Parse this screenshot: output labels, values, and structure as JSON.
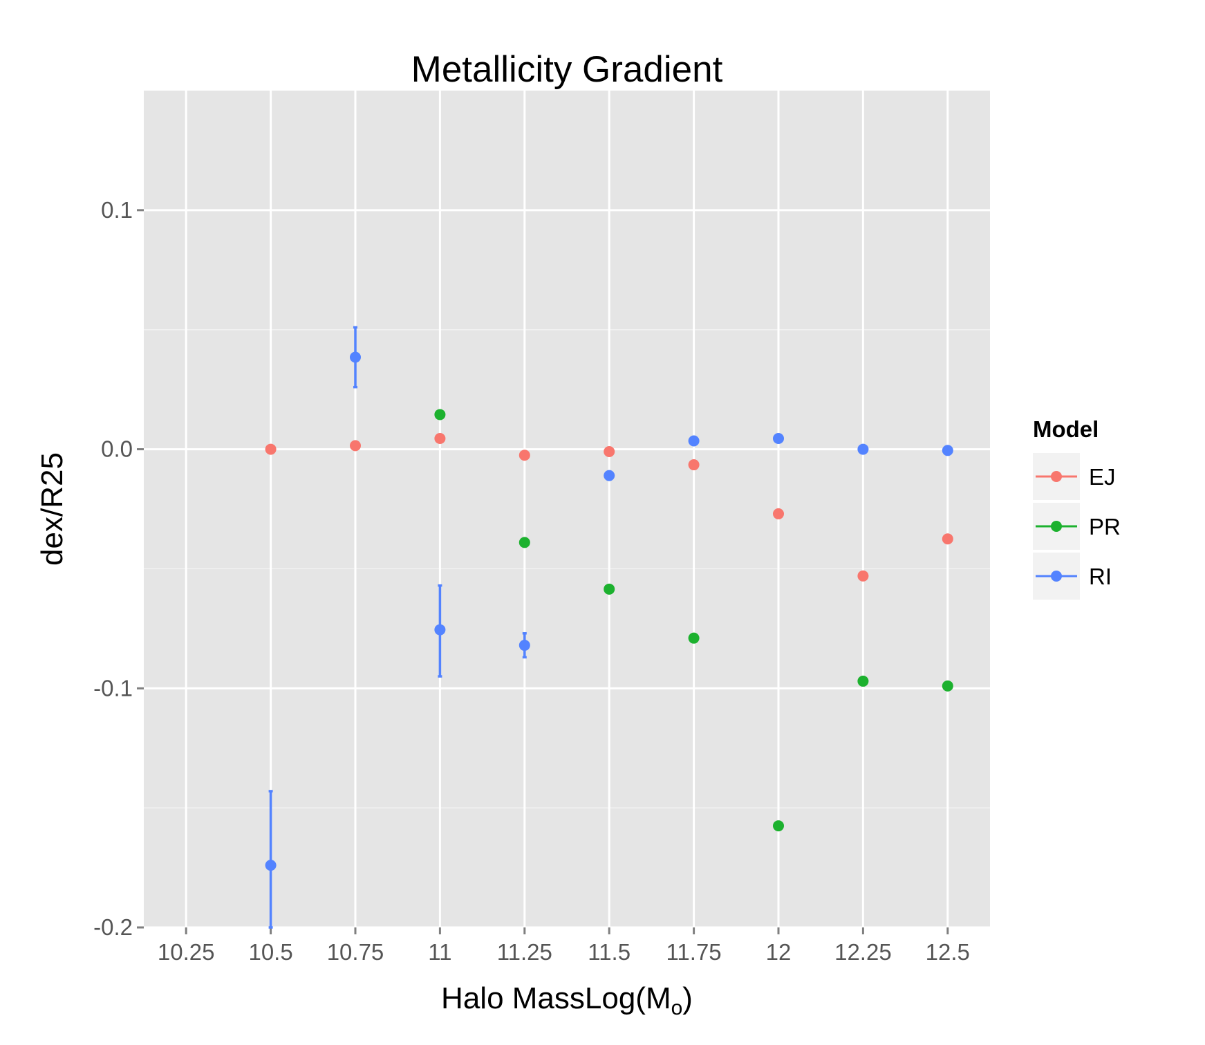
{
  "chart_data": {
    "type": "scatter",
    "title": "Metallicity Gradient",
    "xlabel": "Halo MassLog(M",
    "xlabel_sub": "o",
    "xlabel_close": ")",
    "ylabel": "dex/R25",
    "xlim": [
      10.125,
      12.625
    ],
    "ylim": [
      -0.2,
      0.15
    ],
    "x_ticks": [
      10.25,
      10.5,
      10.75,
      11,
      11.25,
      11.5,
      11.75,
      12,
      12.25,
      12.5
    ],
    "x_tick_labels": [
      "10.25",
      "10.5",
      "10.75",
      "11",
      "11.25",
      "11.5",
      "11.75",
      "12",
      "12.25",
      "12.5"
    ],
    "y_ticks": [
      -0.2,
      -0.1,
      0.0,
      0.1
    ],
    "y_tick_labels": [
      "-0.2",
      "-0.1",
      "0.0",
      "0.1"
    ],
    "grid": true,
    "legend": {
      "title": "Model",
      "position": "right"
    },
    "series": [
      {
        "name": "EJ",
        "color": "#F8766D",
        "points": [
          {
            "x": 10.5,
            "y": 0.0
          },
          {
            "x": 10.75,
            "y": 0.0015
          },
          {
            "x": 11.0,
            "y": 0.0045
          },
          {
            "x": 11.25,
            "y": -0.0025
          },
          {
            "x": 11.5,
            "y": -0.001
          },
          {
            "x": 11.75,
            "y": -0.0065
          },
          {
            "x": 12.0,
            "y": -0.027
          },
          {
            "x": 12.25,
            "y": -0.053
          },
          {
            "x": 12.5,
            "y": -0.0375
          }
        ]
      },
      {
        "name": "PR",
        "color": "#1CB12E",
        "points": [
          {
            "x": 11.0,
            "y": 0.0145
          },
          {
            "x": 11.25,
            "y": -0.039
          },
          {
            "x": 11.5,
            "y": -0.0585
          },
          {
            "x": 11.75,
            "y": -0.079
          },
          {
            "x": 12.0,
            "y": -0.1575
          },
          {
            "x": 12.25,
            "y": -0.097
          },
          {
            "x": 12.5,
            "y": -0.099
          }
        ]
      },
      {
        "name": "RI",
        "color": "#5383FF",
        "points": [
          {
            "x": 10.5,
            "y": -0.174,
            "ymin": -0.2,
            "ymax": -0.143
          },
          {
            "x": 10.75,
            "y": 0.0385,
            "ymin": 0.026,
            "ymax": 0.051
          },
          {
            "x": 11.0,
            "y": -0.0755,
            "ymin": -0.095,
            "ymax": -0.057
          },
          {
            "x": 11.25,
            "y": -0.082,
            "ymin": -0.087,
            "ymax": -0.077
          },
          {
            "x": 11.5,
            "y": -0.011
          },
          {
            "x": 11.75,
            "y": 0.0035
          },
          {
            "x": 12.0,
            "y": 0.0045
          },
          {
            "x": 12.25,
            "y": 0.0
          },
          {
            "x": 12.5,
            "y": -0.0005
          }
        ]
      }
    ]
  }
}
